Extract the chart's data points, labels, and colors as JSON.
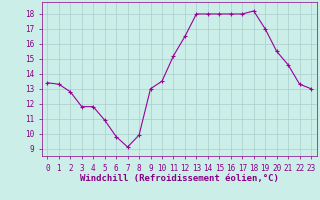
{
  "x": [
    0,
    1,
    2,
    3,
    4,
    5,
    6,
    7,
    8,
    9,
    10,
    11,
    12,
    13,
    14,
    15,
    16,
    17,
    18,
    19,
    20,
    21,
    22,
    23
  ],
  "y": [
    13.4,
    13.3,
    12.8,
    11.8,
    11.8,
    10.9,
    9.8,
    9.1,
    9.9,
    13.0,
    13.5,
    15.2,
    16.5,
    18.0,
    18.0,
    18.0,
    18.0,
    18.0,
    18.2,
    17.0,
    15.5,
    14.6,
    13.3,
    13.0
  ],
  "line_color": "#990099",
  "marker": "+",
  "marker_size": 3,
  "marker_linewidth": 0.8,
  "line_width": 0.8,
  "background_color": "#cceee8",
  "grid_color": "#aacccc",
  "xlabel": "Windchill (Refroidissement éolien,°C)",
  "xlabel_fontsize": 6.5,
  "tick_label_color": "#880088",
  "xlabel_color": "#880088",
  "ylim": [
    8.5,
    18.8
  ],
  "xlim": [
    -0.5,
    23.5
  ],
  "yticks": [
    9,
    10,
    11,
    12,
    13,
    14,
    15,
    16,
    17,
    18
  ],
  "xticks": [
    0,
    1,
    2,
    3,
    4,
    5,
    6,
    7,
    8,
    9,
    10,
    11,
    12,
    13,
    14,
    15,
    16,
    17,
    18,
    19,
    20,
    21,
    22,
    23
  ],
  "tick_fontsize": 5.5,
  "spine_color": "#880088"
}
